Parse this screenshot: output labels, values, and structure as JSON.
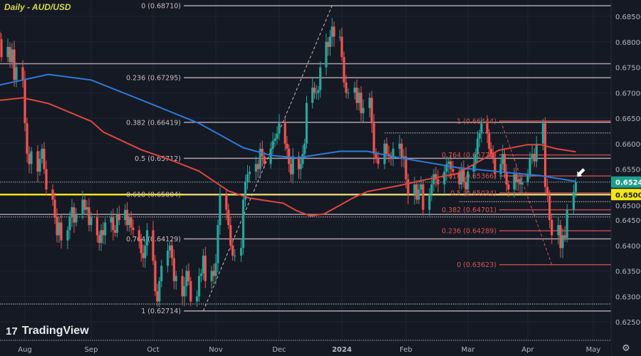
{
  "title": "Daily - AUD/USD",
  "branding": {
    "name": "TradingView",
    "logo_text": "17"
  },
  "settings_icon": "gear-icon",
  "colors": {
    "background": "#151924",
    "up": "#26a69a",
    "down": "#ef5350",
    "ma_blue": "#2d7ad6",
    "ma_red": "#e0463c",
    "fib_white": "#cbbcc1",
    "fib_red": "#d9534f",
    "yellow_level": "#f2e51a",
    "current_price": "#1f9e8c"
  },
  "chart_data": {
    "type": "candlestick",
    "symbol": "AUD/USD",
    "interval": "Daily",
    "ylim": [
      0.622,
      0.6885
    ],
    "y_ticks": [
      "0.68500",
      "0.68000",
      "0.67500",
      "0.67000",
      "0.66500",
      "0.66000",
      "0.65500",
      "0.65000",
      "0.64500",
      "0.64000",
      "0.63500",
      "0.63000",
      "0.62500"
    ],
    "x_ticks": [
      {
        "label": "Aug",
        "date": "2023-08-01"
      },
      {
        "label": "Sep",
        "date": "2023-09-01"
      },
      {
        "label": "Oct",
        "date": "2023-10-02"
      },
      {
        "label": "Nov",
        "date": "2023-11-01"
      },
      {
        "label": "Dec",
        "date": "2023-12-01"
      },
      {
        "label": "2024",
        "date": "2024-01-02"
      },
      {
        "label": "Feb",
        "date": "2024-02-01"
      },
      {
        "label": "Mar",
        "date": "2024-03-01"
      },
      {
        "label": "Apr",
        "date": "2024-04-01"
      },
      {
        "label": "May",
        "date": "2024-05-01"
      }
    ],
    "first_date": "2023-07-20",
    "closes": [
      0.6805,
      0.677,
      0.679,
      0.676,
      0.6785,
      0.6725,
      0.675,
      0.6725,
      0.664,
      0.658,
      0.656,
      0.6585,
      0.6545,
      0.657,
      0.659,
      0.655,
      0.651,
      0.649,
      0.6455,
      0.642,
      0.6445,
      0.641,
      0.643,
      0.6455,
      0.6475,
      0.6445,
      0.646,
      0.649,
      0.647,
      0.6475,
      0.644,
      0.6455,
      0.642,
      0.6405,
      0.643,
      0.642,
      0.6445,
      0.6455,
      0.643,
      0.6425,
      0.646,
      0.645,
      0.647,
      0.644,
      0.6455,
      0.6435,
      0.643,
      0.641,
      0.6385,
      0.6375,
      0.64,
      0.643,
      0.637,
      0.631,
      0.629,
      0.633,
      0.636,
      0.639,
      0.64,
      0.6375,
      0.633,
      0.634,
      0.63,
      0.632,
      0.635,
      0.633,
      0.629,
      0.63,
      0.634,
      0.6345,
      0.638,
      0.633,
      0.635,
      0.634,
      0.6365,
      0.644,
      0.65,
      0.647,
      0.644,
      0.64,
      0.638,
      0.638,
      0.6395,
      0.649,
      0.6525,
      0.654,
      0.6545,
      0.656,
      0.655,
      0.659,
      0.6575,
      0.656,
      0.659,
      0.6605,
      0.661,
      0.662,
      0.664,
      0.66,
      0.659,
      0.656,
      0.654,
      0.6575,
      0.655,
      0.656,
      0.658,
      0.66,
      0.668,
      0.671,
      0.67,
      0.67,
      0.6705,
      0.675,
      0.68,
      0.679,
      0.681,
      0.683,
      0.681,
      0.681,
      0.677,
      0.672,
      0.67,
      0.67,
      0.671,
      0.668,
      0.67,
      0.666,
      0.667,
      0.669,
      0.664,
      0.658,
      0.657,
      0.656,
      0.66,
      0.658,
      0.6575,
      0.657,
      0.659,
      0.66,
      0.657,
      0.6575,
      0.653,
      0.65,
      0.652,
      0.649,
      0.651,
      0.652,
      0.647,
      0.65,
      0.652,
      0.654,
      0.653,
      0.652,
      0.6545,
      0.656,
      0.6565,
      0.655,
      0.6545,
      0.652,
      0.655,
      0.6525,
      0.651,
      0.6545,
      0.656,
      0.658,
      0.661,
      0.662,
      0.664,
      0.662,
      0.659,
      0.658,
      0.657,
      0.654,
      0.656,
      0.658,
      0.6545,
      0.652,
      0.651,
      0.654,
      0.6525,
      0.653,
      0.652,
      0.6525,
      0.654,
      0.657,
      0.658,
      0.6565,
      0.66,
      0.664,
      0.6515,
      0.65,
      0.645,
      0.642,
      0.644,
      0.6395,
      0.642,
      0.6415,
      0.647,
      0.6505,
      0.6524
    ],
    "moving_averages": [
      {
        "color": "ma_blue",
        "points": [
          [
            "2023-07-20",
            0.6715
          ],
          [
            "2023-08-12",
            0.6736
          ],
          [
            "2023-09-01",
            0.6725
          ],
          [
            "2023-09-26",
            0.6686
          ],
          [
            "2023-10-24",
            0.664
          ],
          [
            "2023-11-14",
            0.6592
          ],
          [
            "2023-11-27",
            0.6577
          ],
          [
            "2023-12-10",
            0.6572
          ],
          [
            "2024-01-01",
            0.6585
          ],
          [
            "2024-01-14",
            0.6585
          ],
          [
            "2024-01-28",
            0.6573
          ],
          [
            "2024-02-11",
            0.6563
          ],
          [
            "2024-02-25",
            0.6553
          ],
          [
            "2024-03-17",
            0.6545
          ],
          [
            "2024-04-07",
            0.6537
          ],
          [
            "2024-04-23",
            0.6526
          ]
        ]
      },
      {
        "color": "ma_red",
        "points": [
          [
            "2023-07-20",
            0.6685
          ],
          [
            "2023-07-31",
            0.669
          ],
          [
            "2023-08-12",
            0.6679
          ],
          [
            "2023-09-01",
            0.6644
          ],
          [
            "2023-09-07",
            0.6623
          ],
          [
            "2023-09-26",
            0.6588
          ],
          [
            "2023-10-11",
            0.6567
          ],
          [
            "2023-10-24",
            0.6546
          ],
          [
            "2023-11-07",
            0.6507
          ],
          [
            "2023-11-17",
            0.6493
          ],
          [
            "2023-12-03",
            0.6483
          ],
          [
            "2023-12-10",
            0.6468
          ],
          [
            "2023-12-17",
            0.6458
          ],
          [
            "2023-12-24",
            0.6462
          ],
          [
            "2024-01-08",
            0.6495
          ],
          [
            "2024-01-14",
            0.6506
          ],
          [
            "2024-01-28",
            0.6517
          ],
          [
            "2024-02-11",
            0.653
          ],
          [
            "2024-02-25",
            0.6541
          ],
          [
            "2024-03-17",
            0.6587
          ],
          [
            "2024-04-01",
            0.6598
          ],
          [
            "2024-04-07",
            0.6598
          ],
          [
            "2024-04-14",
            0.659
          ],
          [
            "2024-04-23",
            0.6584
          ]
        ]
      }
    ],
    "fib_retracements": [
      {
        "color": "fib_white",
        "start": [
          "2023-10-26",
          0.62714
        ],
        "end": [
          "2023-12-28",
          0.6871
        ],
        "levels": [
          {
            "label": "0 (0.68710)",
            "price": 0.6871
          },
          {
            "label": "0.236 (0.67295)",
            "price": 0.67295
          },
          {
            "label": "0.382 (0.66419)",
            "price": 0.66419
          },
          {
            "label": "0.5 (0.65712)",
            "price": 0.65712
          },
          {
            "label": "0.618 (0.65004)",
            "price": 0.65004
          },
          {
            "label": "0.764 (0.64129)",
            "price": 0.64129
          },
          {
            "label": "1 (0.62714)",
            "price": 0.62714
          }
        ]
      },
      {
        "color": "fib_red",
        "start": [
          "2024-03-18",
          0.66444
        ],
        "end": [
          "2024-04-12",
          0.63623
        ],
        "levels": [
          {
            "label": "1 (0.66444)",
            "price": 0.66444
          },
          {
            "label": "0.764 (0.65778)",
            "price": 0.65778
          },
          {
            "label": "0.618 (0.65366)",
            "price": 0.65366
          },
          {
            "label": "0.5 (0.65034)",
            "price": 0.65034
          },
          {
            "label": "0.382 (0.64701)",
            "price": 0.64701
          },
          {
            "label": "0.236 (0.64289)",
            "price": 0.64289
          },
          {
            "label": "0 (0.63623)",
            "price": 0.63623
          }
        ]
      }
    ],
    "horizontal_lines": [
      {
        "price": 0.6757,
        "style": "solid",
        "color": "#a8a0a6"
      },
      {
        "price": 0.65,
        "style": "solid",
        "color": "yellow_level"
      },
      {
        "price": 0.6461,
        "style": "solid",
        "color": "#a8a0a6"
      },
      {
        "price": 0.6456,
        "style": "dotted",
        "color": "#c8c8c8"
      },
      {
        "price": 0.6285,
        "style": "dotted",
        "color": "#c8c8c8"
      },
      {
        "price": 0.6621,
        "style": "dotted",
        "color": "#c8c8c8",
        "from": "2024-01-22"
      },
      {
        "price": 0.6486,
        "style": "dotted",
        "color": "#c8c8c8",
        "from": "2024-02-26"
      }
    ],
    "price_labels": [
      {
        "text": "0.65245",
        "price": 0.65245,
        "bg": "current_price",
        "fg": "#ffffff"
      },
      {
        "text": "0.65000",
        "price": 0.65,
        "bg": "yellow_level",
        "fg": "#222222"
      }
    ],
    "annotation_arrow": {
      "date": "2024-04-23",
      "price": 0.6535,
      "direction": "down-left",
      "color": "#ffffff"
    }
  }
}
